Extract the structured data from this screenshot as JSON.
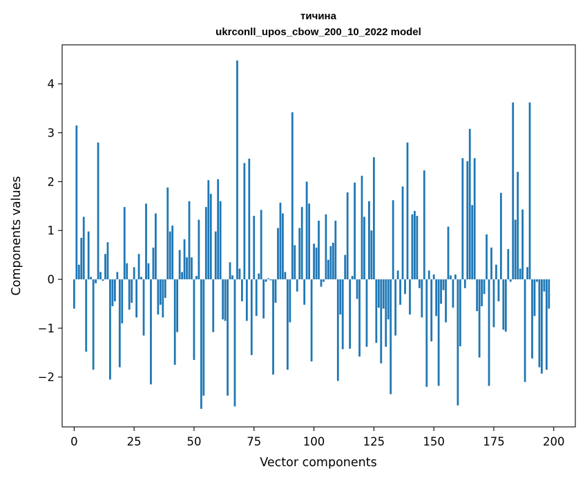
{
  "chart_data": {
    "type": "bar",
    "title": "тичина",
    "subtitle": "ukrconll_upos_cbow_200_10_2022 model",
    "xlabel": "Vector components",
    "ylabel": "Components values",
    "xlim": [
      -5,
      209
    ],
    "ylim": [
      -3.02,
      4.8
    ],
    "x_ticks": [
      0,
      25,
      50,
      75,
      100,
      125,
      150,
      175,
      200
    ],
    "y_ticks": [
      -2,
      -1,
      0,
      1,
      2,
      3,
      4
    ],
    "x_tick_labels": [
      "0",
      "25",
      "50",
      "75",
      "100",
      "125",
      "150",
      "175",
      "200"
    ],
    "y_tick_labels": [
      "−2",
      "−1",
      "0",
      "1",
      "2",
      "3",
      "4"
    ],
    "grid": false,
    "legend": "none",
    "bar_color": "#1f77b4",
    "values": [
      -0.6,
      3.15,
      0.3,
      0.85,
      1.28,
      -1.48,
      0.98,
      0.05,
      -1.85,
      -0.08,
      2.8,
      0.15,
      -0.03,
      0.52,
      0.76,
      -2.05,
      -0.55,
      -0.45,
      0.15,
      -1.8,
      -0.9,
      1.48,
      0.33,
      -0.62,
      -0.48,
      0.25,
      -0.78,
      0.52,
      0.05,
      -1.15,
      1.55,
      0.33,
      -2.15,
      0.65,
      1.35,
      -0.72,
      -0.52,
      -0.78,
      -0.38,
      1.88,
      0.98,
      1.1,
      -1.75,
      -1.08,
      0.6,
      0.15,
      0.82,
      0.45,
      1.6,
      0.45,
      -1.65,
      0.07,
      1.22,
      -2.65,
      -2.38,
      1.48,
      2.03,
      1.75,
      -1.08,
      0.98,
      2.05,
      1.6,
      -0.82,
      -0.85,
      -2.38,
      0.35,
      0.08,
      -2.6,
      4.48,
      0.22,
      -0.45,
      2.38,
      -0.85,
      2.47,
      -1.55,
      1.3,
      -0.75,
      0.12,
      1.42,
      -0.8,
      -0.05,
      0.02,
      -0.02,
      -1.95,
      -0.48,
      1.05,
      1.57,
      1.35,
      0.15,
      -1.85,
      -0.88,
      3.42,
      0.7,
      -0.25,
      1.05,
      1.48,
      -0.52,
      2.0,
      1.55,
      -1.68,
      0.73,
      0.65,
      1.2,
      -0.15,
      -0.05,
      1.33,
      0.4,
      0.68,
      0.75,
      1.2,
      -2.08,
      -0.72,
      -1.43,
      0.5,
      1.78,
      -1.42,
      0.07,
      1.98,
      -0.4,
      -1.58,
      2.12,
      1.28,
      -1.38,
      1.6,
      1.0,
      2.5,
      -1.3,
      -0.58,
      -1.72,
      -0.6,
      -1.38,
      -0.82,
      -2.35,
      1.62,
      -1.15,
      0.18,
      -0.52,
      1.9,
      -0.3,
      2.8,
      -0.72,
      1.33,
      1.4,
      1.3,
      -0.18,
      -0.78,
      2.23,
      -2.2,
      0.18,
      -1.27,
      0.1,
      -0.75,
      -2.18,
      -0.5,
      -0.22,
      -0.88,
      1.08,
      0.08,
      -0.58,
      0.1,
      -2.58,
      -1.37,
      2.48,
      -0.18,
      2.42,
      3.08,
      1.52,
      2.48,
      -0.65,
      -1.6,
      -0.55,
      -0.3,
      0.92,
      -2.18,
      0.65,
      -0.98,
      0.3,
      -0.45,
      1.77,
      -1.03,
      -1.07,
      0.62,
      -0.05,
      3.62,
      1.22,
      2.2,
      0.22,
      1.43,
      -2.1,
      0.25,
      3.62,
      -1.62,
      -0.75,
      -0.05,
      -1.8,
      -1.93,
      -0.25,
      -1.85,
      -0.6
    ]
  }
}
